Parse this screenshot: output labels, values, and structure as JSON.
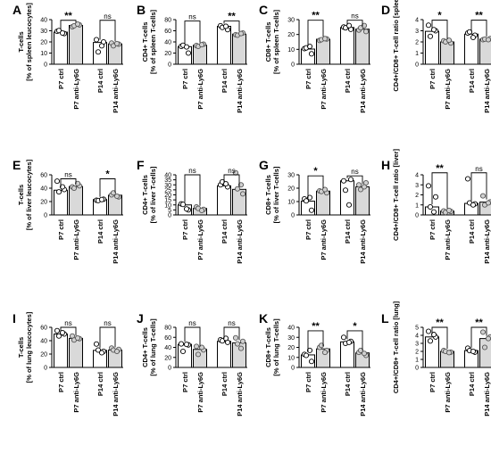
{
  "categories": [
    "P7 ctrl",
    "P7 anti-Ly6G",
    "P14 ctrl",
    "P14 anti-Ly6G"
  ],
  "colors": {
    "ctrl_fill": "#ffffff",
    "treated_fill": "#d9d9d9",
    "stroke": "#000000"
  },
  "chart_data": [
    {
      "type": "bar",
      "panel": "A",
      "ylabel": "T-cells",
      "ylabel2": "[% of spleen leucocytes]",
      "ylim": [
        0,
        40
      ],
      "yticks": [
        0,
        10,
        20,
        30,
        40
      ],
      "categories": [
        "P7 ctrl",
        "P7 anti-Ly6G",
        "P14 ctrl",
        "P14 anti-Ly6G"
      ],
      "values": [
        28.8,
        34.8,
        19.5,
        18.2
      ],
      "points": [
        [
          29.5,
          27.5,
          30.2,
          28.0
        ],
        [
          33.6,
          35.3,
          34.5,
          36.0
        ],
        [
          22.0,
          20.0,
          11.0,
          16.5
        ],
        [
          19.0,
          18.0,
          16.5,
          18.5
        ]
      ],
      "significance": [
        {
          "group": 0,
          "label": "**",
          "y": 39.4
        },
        {
          "group": 1,
          "label": "ns",
          "y": 39.4
        }
      ]
    },
    {
      "type": "bar",
      "panel": "B",
      "ylabel": "CD4+ T-cells",
      "ylabel2": "[% of spleen T-cells]",
      "ylim": [
        0,
        80
      ],
      "yticks": [
        0,
        20,
        40,
        60,
        80
      ],
      "categories": [
        "P7 ctrl",
        "P7 anti-Ly6G",
        "P14 ctrl",
        "P14 anti-Ly6G"
      ],
      "values": [
        31.5,
        34.0,
        68.0,
        54.0
      ],
      "points": [
        [
          32.0,
          20.0,
          34.0,
          31.0
        ],
        [
          33.5,
          36.0,
          32.0,
          35.0
        ],
        [
          69.0,
          62.0,
          66.0,
          68.0
        ],
        [
          53.0,
          56.0,
          52.0,
          55.0
        ]
      ],
      "significance": [
        {
          "group": 0,
          "label": "ns",
          "y": 77.5
        },
        {
          "group": 1,
          "label": "**",
          "y": 77.5
        }
      ]
    },
    {
      "type": "bar",
      "panel": "C",
      "ylabel": "CD8+ T-cells",
      "ylabel2": "[% of spleen T-cells]",
      "ylim": [
        0,
        30
      ],
      "yticks": [
        0,
        10,
        20,
        30
      ],
      "categories": [
        "P7 ctrl",
        "P7 anti-Ly6G",
        "P14 ctrl",
        "P14 anti-Ly6G"
      ],
      "values": [
        10.2,
        16.8,
        24.7,
        23.6
      ],
      "points": [
        [
          10.5,
          7.0,
          11.0,
          12.0
        ],
        [
          16.0,
          17.0,
          16.5,
          17.2
        ],
        [
          25.0,
          23.5,
          24.5,
          26.0
        ],
        [
          23.0,
          22.0,
          24.5,
          26.0
        ]
      ],
      "significance": [
        {
          "group": 0,
          "label": "**",
          "y": 29.6
        },
        {
          "group": 1,
          "label": "ns",
          "y": 29.6
        }
      ]
    },
    {
      "type": "bar",
      "panel": "D",
      "ylabel": "CD4+/CD8+ T-cell ratio [spleen]",
      "ylim": [
        0,
        4
      ],
      "yticks": [
        0,
        1,
        2,
        3,
        4
      ],
      "categories": [
        "P7 ctrl",
        "P7 anti-Ly6G",
        "P14 ctrl",
        "P14 anti-Ly6G"
      ],
      "values": [
        2.95,
        2.0,
        2.7,
        2.25
      ],
      "points": [
        [
          3.5,
          3.0,
          2.5,
          3.1
        ],
        [
          2.1,
          1.9,
          2.0,
          2.15
        ],
        [
          2.8,
          2.6,
          2.9,
          2.4
        ],
        [
          2.2,
          2.3,
          2.25,
          2.2
        ]
      ],
      "significance": [
        {
          "group": 0,
          "label": "*",
          "y": 3.95
        },
        {
          "group": 1,
          "label": "**",
          "y": 3.95
        }
      ]
    },
    {
      "type": "bar",
      "panel": "E",
      "ylabel": "T-cells",
      "ylabel2": "[% of liver leucocytes]",
      "ylim": [
        0,
        60
      ],
      "yticks": [
        0,
        20,
        40,
        60
      ],
      "categories": [
        "P7 ctrl",
        "P7 anti-Ly6G",
        "P14 ctrl",
        "P14 anti-Ly6G"
      ],
      "values": [
        37.0,
        42.5,
        23.0,
        29.5
      ],
      "points": [
        [
          50.5,
          38.0,
          34.5,
          42.0
        ],
        [
          42.0,
          43.5,
          40.0,
          47.0
        ],
        [
          22.0,
          23.5,
          21.5,
          23.0
        ],
        [
          30.0,
          27.0,
          33.0,
          28.0
        ]
      ],
      "significance": [
        {
          "group": 0,
          "label": "ns",
          "y": 54
        },
        {
          "group": 1,
          "label": "*",
          "y": 54
        }
      ]
    },
    {
      "type": "bar",
      "panel": "F",
      "ylabel": "CD4+ T-cells",
      "ylabel2": "[% of liver T-cells]",
      "ylim": [
        0,
        40
      ],
      "yticks": [
        0,
        5,
        10,
        15,
        20,
        25,
        30,
        35,
        40
      ],
      "categories": [
        "P7 ctrl",
        "P7 anti-Ly6G",
        "P14 ctrl",
        "P14 anti-Ly6G"
      ],
      "values": [
        10.0,
        6.5,
        29.0,
        25.5
      ],
      "points": [
        [
          11.0,
          5.0,
          10.5,
          6.0
        ],
        [
          8.0,
          5.5,
          6.5,
          4.5
        ],
        [
          30.0,
          28.0,
          33.0,
          31.0
        ],
        [
          42.0,
          21.0,
          26.0,
          30.0
        ]
      ],
      "significance": [
        {
          "group": 0,
          "label": "ns",
          "y": 40
        },
        {
          "group": 1,
          "label": "ns",
          "y": 40
        }
      ]
    },
    {
      "type": "bar",
      "panel": "G",
      "ylabel": "CD8+ T-cells",
      "ylabel2": "[% of liver T-cells]",
      "ylim": [
        0,
        30
      ],
      "yticks": [
        0,
        10,
        20,
        30
      ],
      "categories": [
        "P7 ctrl",
        "P7 anti-Ly6G",
        "P14 ctrl",
        "P14 anti-Ly6G"
      ],
      "values": [
        10.3,
        17.8,
        25.5,
        21.0
      ],
      "points": [
        [
          12.0,
          3.5,
          10.5,
          13.0
        ],
        [
          18.0,
          16.5,
          17.5,
          19.0
        ],
        [
          25.5,
          26.5,
          18.5,
          7.5
        ],
        [
          22.5,
          24.0,
          19.0,
          21.0
        ]
      ],
      "significance": [
        {
          "group": 0,
          "label": "*",
          "y": 29.2
        },
        {
          "group": 1,
          "label": "ns",
          "y": 29.2
        }
      ]
    },
    {
      "type": "bar",
      "panel": "H",
      "ylabel": "CD4+/CD8+ T-cell ratio [liver]",
      "ylim": [
        0,
        4
      ],
      "yticks": [
        0,
        1,
        2,
        3,
        4
      ],
      "categories": [
        "P7 ctrl",
        "P7 anti-Ly6G",
        "P14 ctrl",
        "P14 anti-Ly6G"
      ],
      "values": [
        0.8,
        0.38,
        1.15,
        1.28
      ],
      "points": [
        [
          2.9,
          1.8,
          0.8,
          0.3
        ],
        [
          0.4,
          0.35,
          0.25,
          0.45
        ],
        [
          3.6,
          1.1,
          1.2,
          1.0
        ],
        [
          1.9,
          1.3,
          1.0,
          1.2
        ]
      ],
      "significance": [
        {
          "group": 0,
          "label": "**",
          "y": 4.2
        },
        {
          "group": 1,
          "label": "ns",
          "y": 4.2
        }
      ]
    },
    {
      "type": "bar",
      "panel": "I",
      "ylabel": "T-cells",
      "ylabel2": "[% of lung leucocytes]",
      "ylim": [
        0,
        60
      ],
      "yticks": [
        0,
        20,
        40,
        60
      ],
      "categories": [
        "P7 ctrl",
        "P7 anti-Ly6G",
        "P14 ctrl",
        "P14 anti-Ly6G"
      ],
      "values": [
        50.0,
        43.5,
        25.5,
        26.0
      ],
      "points": [
        [
          55.0,
          50.0,
          47.0,
          52.0
        ],
        [
          47.0,
          43.0,
          41.0,
          44.0
        ],
        [
          35.0,
          24.0,
          26.0,
          22.0
        ],
        [
          29.0,
          27.0,
          26.0,
          24.0
        ]
      ],
      "significance": [
        {
          "group": 0,
          "label": "ns",
          "y": 60
        },
        {
          "group": 1,
          "label": "ns",
          "y": 60
        }
      ]
    },
    {
      "type": "bar",
      "panel": "J",
      "ylabel": "CD4+ T-cells",
      "ylabel2": "[% of lung T-cells]",
      "ylim": [
        0,
        80
      ],
      "yticks": [
        0,
        20,
        40,
        60,
        80
      ],
      "categories": [
        "P7 ctrl",
        "P7 anti-Ly6G",
        "P14 ctrl",
        "P14 anti-Ly6G"
      ],
      "values": [
        46.0,
        36.0,
        52.0,
        49.0
      ],
      "points": [
        [
          47.0,
          45.0,
          32.0,
          46.0
        ],
        [
          42.0,
          35.0,
          26.0,
          40.0
        ],
        [
          55.0,
          50.0,
          53.0,
          58.0
        ],
        [
          59.0,
          52.0,
          47.0,
          38.0
        ]
      ],
      "significance": [
        {
          "group": 0,
          "label": "ns",
          "y": 80
        },
        {
          "group": 1,
          "label": "ns",
          "y": 80
        }
      ]
    },
    {
      "type": "bar",
      "panel": "K",
      "ylabel": "CD8+ T-cells",
      "ylabel2": "[% of lung T-cells]",
      "ylim": [
        0,
        40
      ],
      "yticks": [
        0,
        10,
        20,
        30,
        40
      ],
      "categories": [
        "P7 ctrl",
        "P7 anti-Ly6G",
        "P14 ctrl",
        "P14 anti-Ly6G"
      ],
      "values": [
        12.5,
        18.5,
        25.5,
        14.5
      ],
      "points": [
        [
          13.0,
          6.0,
          12.0,
          17.0
        ],
        [
          20.0,
          17.0,
          22.0,
          15.0
        ],
        [
          30.0,
          26.0,
          24.0,
          25.0
        ],
        [
          15.0,
          12.0,
          17.0,
          14.0
        ]
      ],
      "significance": [
        {
          "group": 0,
          "label": "**",
          "y": 36.5
        },
        {
          "group": 1,
          "label": "*",
          "y": 36.5
        }
      ]
    },
    {
      "type": "bar",
      "panel": "L",
      "ylabel": "CD4+/CD8+ T-cell ratio [lung]",
      "ylim": [
        0,
        5
      ],
      "yticks": [
        0,
        1,
        2,
        3,
        4,
        5
      ],
      "categories": [
        "P7 ctrl",
        "P7 anti-Ly6G",
        "P14 ctrl",
        "P14 anti-Ly6G"
      ],
      "values": [
        3.8,
        2.0,
        2.1,
        3.6
      ],
      "points": [
        [
          4.5,
          3.8,
          3.3,
          4.1
        ],
        [
          2.1,
          1.9,
          2.0,
          1.85
        ],
        [
          2.4,
          1.9,
          2.1,
          2.0
        ],
        [
          4.4,
          3.8,
          2.5,
          3.6
        ]
      ],
      "significance": [
        {
          "group": 0,
          "label": "**",
          "y": 5.0
        },
        {
          "group": 1,
          "label": "**",
          "y": 5.0
        }
      ]
    }
  ]
}
